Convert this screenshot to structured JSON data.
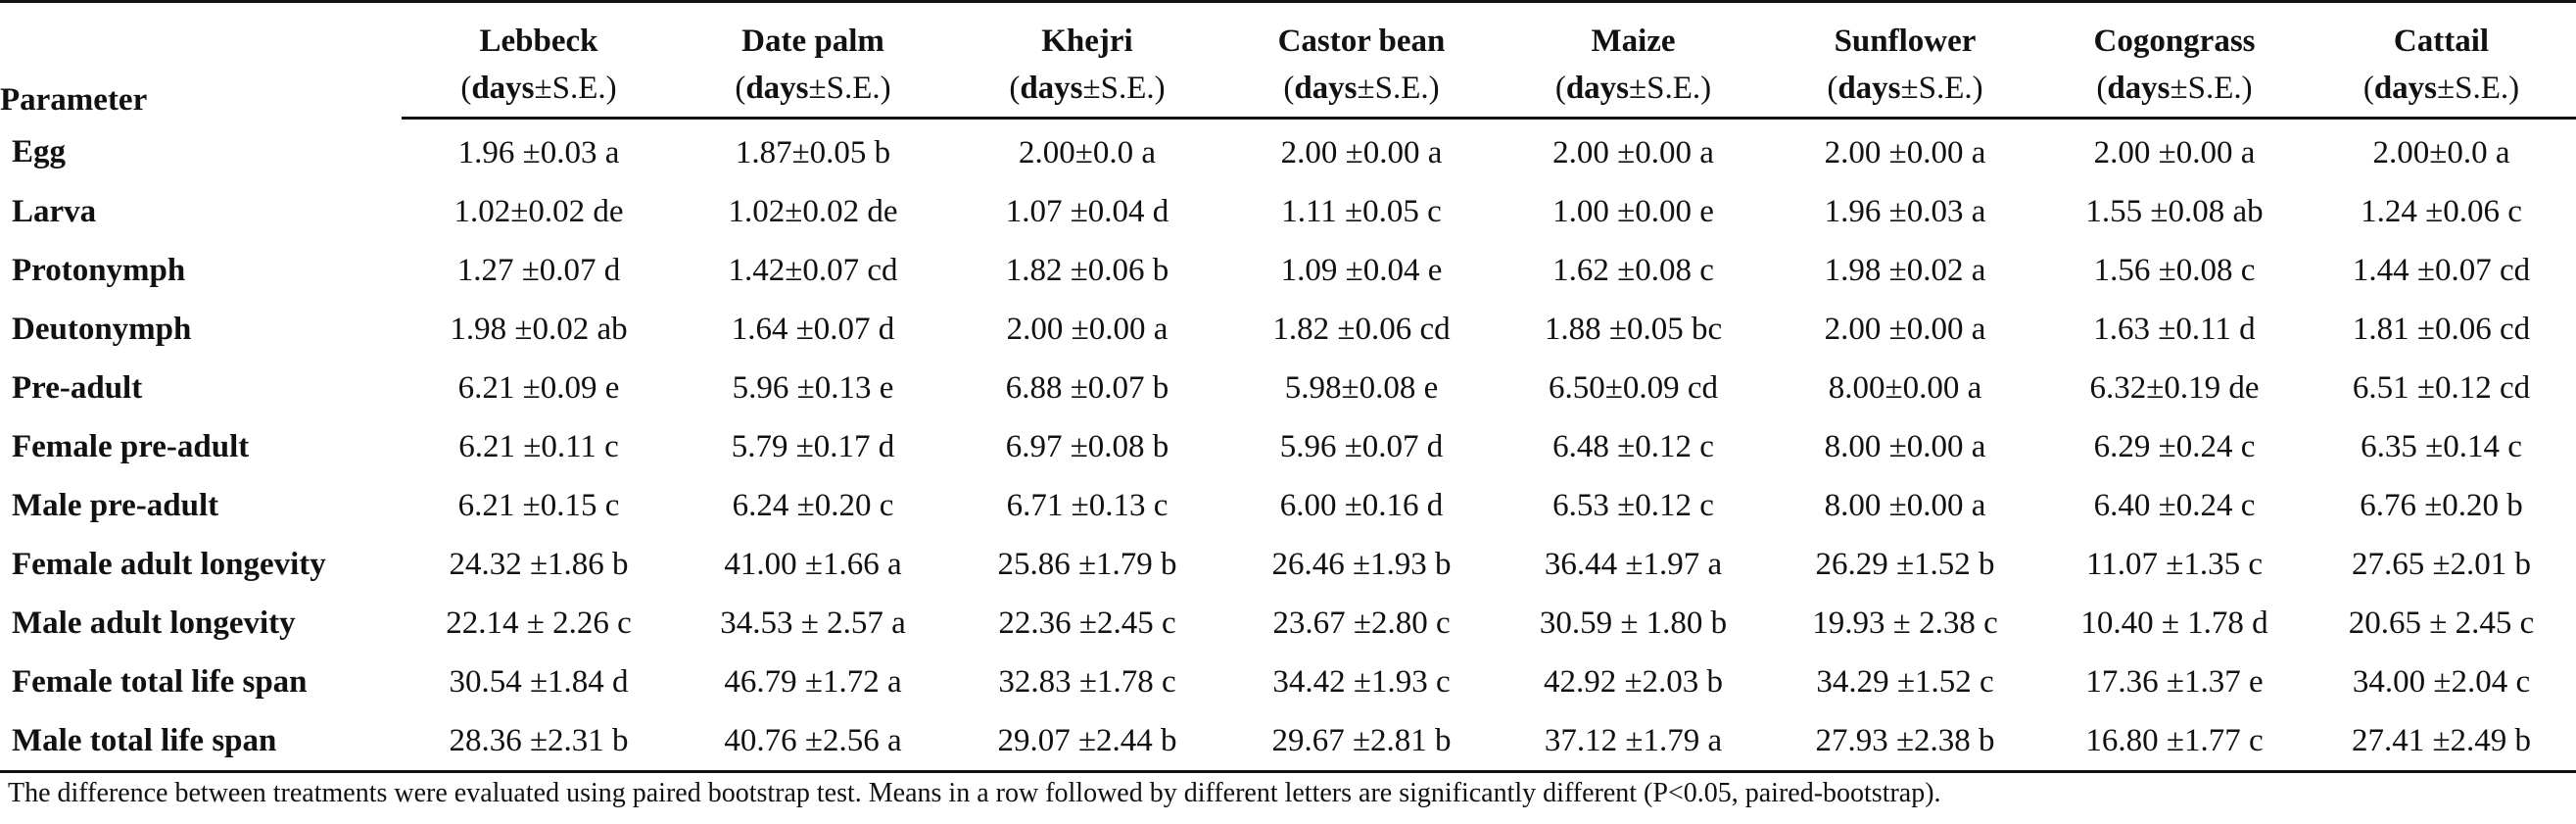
{
  "table": {
    "param_header": "Parameter",
    "unit_bold": "days",
    "unit_rest": "±S.E.)",
    "unit_open": "(",
    "columns": [
      "Lebbeck",
      "Date palm",
      "Khejri",
      "Castor bean",
      "Maize",
      "Sunflower",
      "Cogongrass",
      "Cattail"
    ],
    "rows": [
      {
        "label": "Egg",
        "values": [
          "1.96 ±0.03 a",
          "1.87±0.05 b",
          "2.00±0.0 a",
          "2.00 ±0.00 a",
          "2.00 ±0.00 a",
          "2.00 ±0.00 a",
          "2.00 ±0.00 a",
          "2.00±0.0 a"
        ]
      },
      {
        "label": "Larva",
        "values": [
          "1.02±0.02 de",
          "1.02±0.02 de",
          "1.07 ±0.04 d",
          "1.11 ±0.05 c",
          "1.00 ±0.00 e",
          "1.96 ±0.03 a",
          "1.55 ±0.08 ab",
          "1.24 ±0.06 c"
        ]
      },
      {
        "label": "Protonymph",
        "values": [
          "1.27 ±0.07 d",
          "1.42±0.07 cd",
          "1.82 ±0.06 b",
          "1.09 ±0.04 e",
          "1.62 ±0.08 c",
          "1.98 ±0.02 a",
          "1.56 ±0.08 c",
          "1.44 ±0.07 cd"
        ]
      },
      {
        "label": "Deutonymph",
        "values": [
          "1.98 ±0.02 ab",
          "1.64 ±0.07 d",
          "2.00 ±0.00 a",
          "1.82 ±0.06 cd",
          "1.88 ±0.05 bc",
          "2.00 ±0.00 a",
          "1.63 ±0.11 d",
          "1.81 ±0.06 cd"
        ]
      },
      {
        "label": "Pre-adult",
        "values": [
          "6.21 ±0.09 e",
          "5.96 ±0.13 e",
          "6.88 ±0.07 b",
          "5.98±0.08 e",
          "6.50±0.09 cd",
          "8.00±0.00 a",
          "6.32±0.19 de",
          "6.51 ±0.12 cd"
        ]
      },
      {
        "label": "Female pre-adult",
        "values": [
          "6.21 ±0.11 c",
          "5.79 ±0.17 d",
          "6.97 ±0.08 b",
          "5.96 ±0.07 d",
          "6.48 ±0.12 c",
          "8.00 ±0.00 a",
          "6.29 ±0.24 c",
          "6.35 ±0.14 c"
        ]
      },
      {
        "label": "Male pre-adult",
        "values": [
          "6.21 ±0.15 c",
          "6.24 ±0.20 c",
          "6.71 ±0.13 c",
          "6.00 ±0.16 d",
          "6.53 ±0.12 c",
          "8.00 ±0.00 a",
          "6.40 ±0.24 c",
          "6.76 ±0.20 b"
        ]
      },
      {
        "label": "Female adult longevity",
        "values": [
          "24.32 ±1.86 b",
          "41.00 ±1.66 a",
          "25.86 ±1.79 b",
          "26.46 ±1.93 b",
          "36.44 ±1.97 a",
          "26.29 ±1.52 b",
          "11.07 ±1.35 c",
          "27.65 ±2.01 b"
        ]
      },
      {
        "label": "Male adult longevity",
        "values": [
          "22.14 ± 2.26 c",
          "34.53 ± 2.57 a",
          "22.36 ±2.45 c",
          "23.67 ±2.80 c",
          "30.59 ± 1.80 b",
          "19.93 ± 2.38 c",
          "10.40 ± 1.78 d",
          "20.65 ± 2.45 c"
        ]
      },
      {
        "label": "Female total life span",
        "values": [
          "30.54 ±1.84 d",
          "46.79 ±1.72 a",
          "32.83 ±1.78 c",
          "34.42 ±1.93 c",
          "42.92 ±2.03 b",
          "34.29 ±1.52 c",
          "17.36 ±1.37 e",
          "34.00 ±2.04 c"
        ]
      },
      {
        "label": "Male total life span",
        "values": [
          "28.36 ±2.31 b",
          "40.76 ±2.56 a",
          "29.07 ±2.44 b",
          "29.67 ±2.81 b",
          "37.12 ±1.79 a",
          "27.93 ±2.38 b",
          "16.80 ±1.77 c",
          "27.41 ±2.49 b"
        ]
      }
    ]
  },
  "footnote": "The difference between treatments were evaluated using paired bootstrap test. Means in a row followed by different letters are significantly different (P<0.05, paired-bootstrap)."
}
